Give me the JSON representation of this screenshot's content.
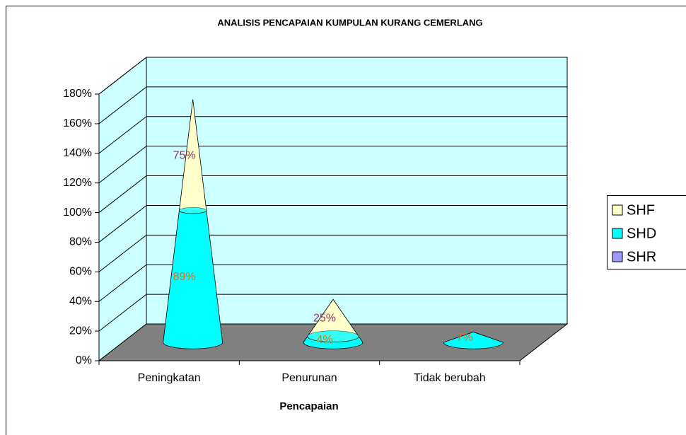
{
  "chart_data": {
    "type": "cone3d_stacked",
    "title": "ANALISIS PENCAPAIAN KUMPULAN KURANG CEMERLANG",
    "x_label": "Pencapaian",
    "categories": [
      "Peningkatan",
      "Penurunan",
      "Tidak berubah"
    ],
    "series": [
      {
        "name": "SHF",
        "color": "#ffffcc",
        "label_color": "#993366",
        "values": [
          75,
          25,
          null
        ],
        "value_labels": [
          "75%",
          "25%",
          null
        ]
      },
      {
        "name": "SHD",
        "color": "#00ffff",
        "label_color": "#ff6600",
        "values": [
          89,
          4,
          7
        ],
        "value_labels": [
          "89%",
          "4%",
          "7%"
        ]
      },
      {
        "name": "SHR",
        "color": "#9999ff",
        "label_color": "#333399",
        "values": [
          null,
          null,
          null
        ],
        "value_labels": [
          null,
          null,
          null
        ]
      }
    ],
    "stack_order": [
      1,
      0,
      2
    ],
    "ylim": [
      0,
      180
    ],
    "yticks": [
      {
        "value": 0,
        "label": "0%"
      },
      {
        "value": 20,
        "label": "20%"
      },
      {
        "value": 40,
        "label": "40%"
      },
      {
        "value": 60,
        "label": "60%"
      },
      {
        "value": 80,
        "label": "80%"
      },
      {
        "value": 100,
        "label": "100%"
      },
      {
        "value": 120,
        "label": "120%"
      },
      {
        "value": 140,
        "label": "140%"
      },
      {
        "value": 160,
        "label": "160%"
      },
      {
        "value": 180,
        "label": "180%"
      }
    ],
    "grid": true,
    "legend": "right"
  }
}
